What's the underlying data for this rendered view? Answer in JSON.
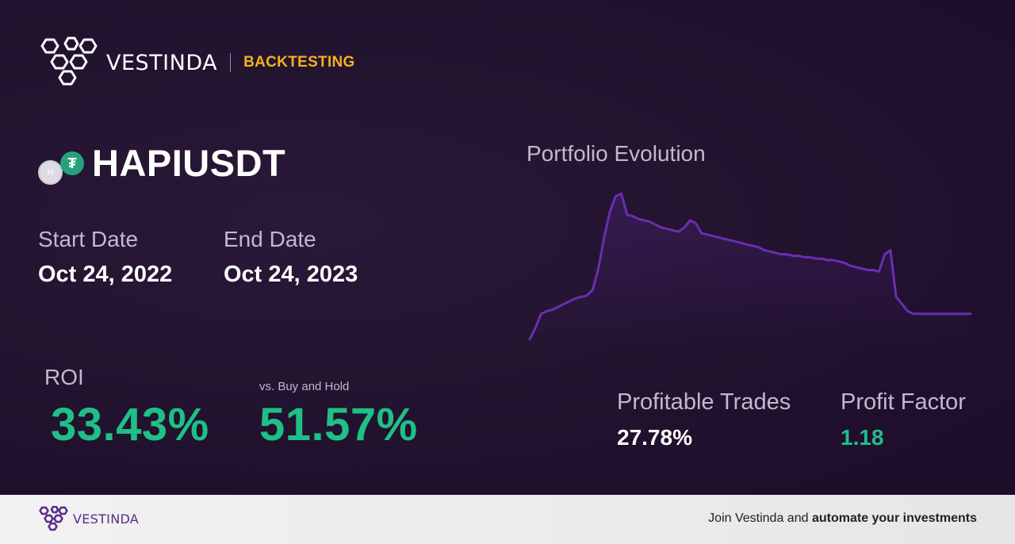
{
  "header": {
    "brand": "VESTINDA",
    "section": "BACKTESTING"
  },
  "pair": {
    "symbol": "HAPIUSDT",
    "base_icon_letter": "H",
    "quote_icon_glyph": "₮",
    "base_icon": "hapi-coin-icon",
    "quote_icon": "tether-coin-icon"
  },
  "dates": {
    "start_label": "Start Date",
    "start_value": "Oct 24, 2022",
    "end_label": "End Date",
    "end_value": "Oct 24, 2023"
  },
  "roi": {
    "label": "ROI",
    "value": "33.43%",
    "vs_label": "vs. Buy and Hold",
    "vs_value": "51.57%"
  },
  "chart": {
    "title": "Portfolio Evolution"
  },
  "chart_data": {
    "type": "line",
    "title": "Portfolio Evolution",
    "xlabel": "",
    "ylabel": "",
    "grid": false,
    "series": [
      {
        "values": [
          100,
          108,
          118,
          120,
          121,
          123,
          125,
          127,
          129,
          130,
          131,
          135,
          150,
          172,
          190,
          201,
          203,
          188,
          187,
          185,
          184,
          183,
          181,
          179,
          178,
          177,
          176,
          179,
          184,
          182,
          175,
          174,
          173,
          172,
          171,
          170,
          169,
          168,
          167,
          166,
          165,
          163,
          162,
          161,
          160,
          160,
          159,
          159,
          158,
          158,
          157,
          157,
          156,
          156,
          155,
          154,
          152,
          151,
          150,
          149,
          149,
          148,
          160,
          163,
          130,
          125,
          120,
          118,
          118,
          118,
          118,
          118,
          118,
          118,
          118,
          118,
          118,
          118
        ]
      }
    ],
    "color": "#6b2db0"
  },
  "stats": {
    "profitable_label": "Profitable Trades",
    "profitable_value": "27.78%",
    "factor_label": "Profit Factor",
    "factor_value": "1.18"
  },
  "footer": {
    "brand": "VESTINDA",
    "cta_prefix": "Join Vestinda and ",
    "cta_bold": "automate your investments"
  },
  "colors": {
    "accent_yellow": "#f5b21a",
    "positive_green": "#1fbf86",
    "chart_line": "#6b2db0",
    "brand_purple": "#5a2a8a"
  }
}
